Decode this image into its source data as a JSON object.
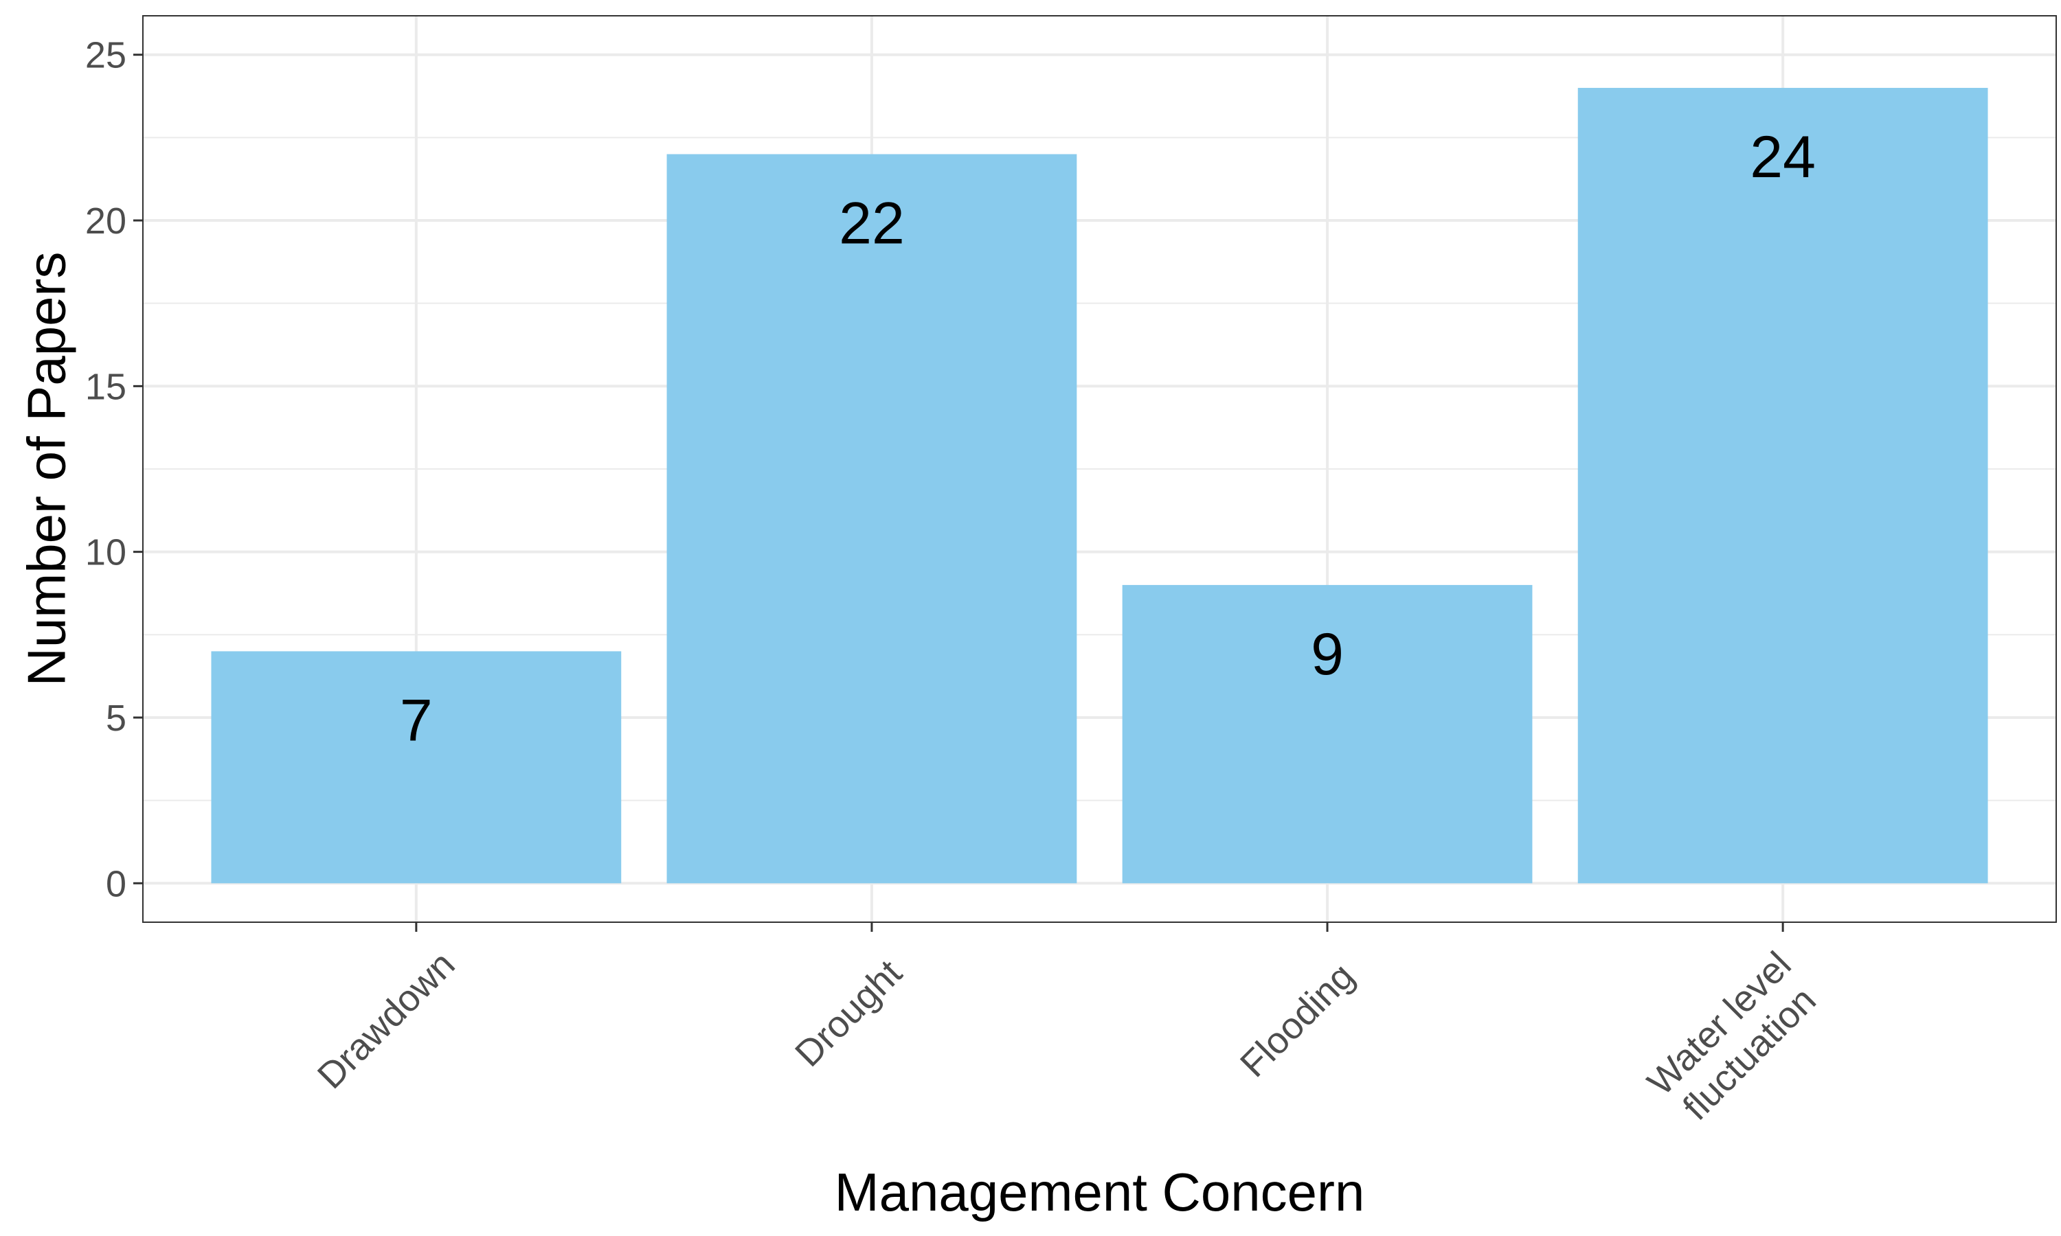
{
  "chart_data": {
    "type": "bar",
    "title": "",
    "xlabel": "Management Concern",
    "ylabel": "Number of Papers",
    "categories": [
      "Drawdown",
      "Drought",
      "Flooding",
      "Water level\nfluctuation"
    ],
    "values": [
      7,
      22,
      9,
      24
    ],
    "data_labels": [
      "7",
      "22",
      "9",
      "24"
    ],
    "ylim": [
      0,
      25
    ],
    "y_ticks": [
      0,
      5,
      10,
      15,
      20,
      25
    ],
    "y_tick_labels": [
      "0",
      "5",
      "10",
      "15",
      "20",
      "25"
    ],
    "grid": true,
    "legend": "none",
    "x_tick_rotation": "45 degrees",
    "colors": {
      "bar": "#89CBED",
      "grid": "#EBEBEB",
      "panel_border": "#333333",
      "tick_text": "#4D4D4D",
      "axis_title": "#000000",
      "background": "#FFFFFF"
    }
  }
}
